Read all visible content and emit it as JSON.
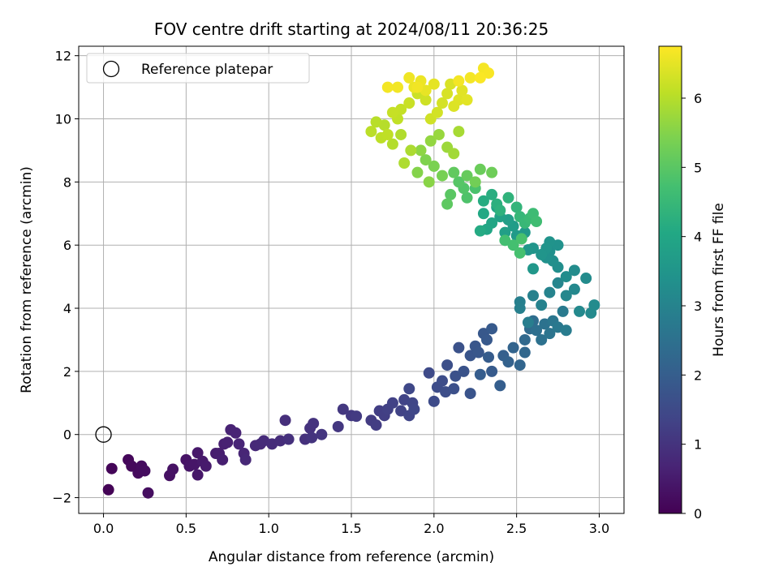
{
  "chart_data": {
    "type": "scatter",
    "title": "FOV centre drift starting at 2024/08/11 20:36:25",
    "xlabel": "Angular distance from reference (arcmin)",
    "ylabel": "Rotation from reference (arcmin)",
    "xlim": [
      -0.15,
      3.15
    ],
    "ylim": [
      -2.5,
      12.3
    ],
    "xticks": [
      0.0,
      0.5,
      1.0,
      1.5,
      2.0,
      2.5,
      3.0
    ],
    "xtick_labels": [
      "0.0",
      "0.5",
      "1.0",
      "1.5",
      "2.0",
      "2.5",
      "3.0"
    ],
    "yticks": [
      -2,
      0,
      2,
      4,
      6,
      8,
      10,
      12
    ],
    "ytick_labels": [
      "−2",
      "0",
      "2",
      "4",
      "6",
      "8",
      "10",
      "12"
    ],
    "grid": true,
    "legend": {
      "position": "top-left",
      "entries": [
        "Reference platepar"
      ]
    },
    "reference_point": {
      "x": 0.0,
      "y": 0.0,
      "label": "Reference platepar"
    },
    "colorbar": {
      "label": "Hours from first FF file",
      "colormap": "viridis",
      "range": [
        0,
        6.75
      ],
      "ticks": [
        0,
        1,
        2,
        3,
        4,
        5,
        6
      ],
      "tick_labels": [
        "0",
        "1",
        "2",
        "3",
        "4",
        "5",
        "6"
      ]
    },
    "series": [
      {
        "points": [
          [
            0.03,
            -1.75,
            0.05
          ],
          [
            0.05,
            -1.08,
            0.08
          ],
          [
            0.15,
            -0.8,
            0.12
          ],
          [
            0.17,
            -1.0,
            0.15
          ],
          [
            0.21,
            -1.22,
            0.18
          ],
          [
            0.23,
            -1.0,
            0.2
          ],
          [
            0.25,
            -1.15,
            0.22
          ],
          [
            0.27,
            -1.85,
            0.25
          ],
          [
            0.4,
            -1.3,
            0.3
          ],
          [
            0.42,
            -1.1,
            0.32
          ],
          [
            0.5,
            -0.8,
            0.35
          ],
          [
            0.52,
            -1.0,
            0.38
          ],
          [
            0.55,
            -0.95,
            0.4
          ],
          [
            0.57,
            -1.28,
            0.42
          ],
          [
            0.57,
            -0.58,
            0.45
          ],
          [
            0.6,
            -0.85,
            0.48
          ],
          [
            0.62,
            -1.0,
            0.5
          ],
          [
            0.68,
            -0.6,
            0.53
          ],
          [
            0.7,
            -0.6,
            0.55
          ],
          [
            0.72,
            -0.8,
            0.57
          ],
          [
            0.73,
            -0.3,
            0.6
          ],
          [
            0.75,
            -0.25,
            0.62
          ],
          [
            0.77,
            0.15,
            0.65
          ],
          [
            0.8,
            0.05,
            0.67
          ],
          [
            0.82,
            -0.3,
            0.7
          ],
          [
            0.85,
            -0.6,
            0.72
          ],
          [
            0.86,
            -0.8,
            0.75
          ],
          [
            0.92,
            -0.35,
            0.78
          ],
          [
            0.95,
            -0.3,
            0.8
          ],
          [
            0.97,
            -0.2,
            0.82
          ],
          [
            1.02,
            -0.3,
            0.85
          ],
          [
            1.07,
            -0.2,
            0.87
          ],
          [
            1.1,
            0.45,
            0.9
          ],
          [
            1.12,
            -0.15,
            0.92
          ],
          [
            1.22,
            -0.15,
            0.95
          ],
          [
            1.25,
            0.2,
            0.97
          ],
          [
            1.27,
            0.35,
            1.0
          ],
          [
            1.26,
            -0.1,
            1.02
          ],
          [
            1.32,
            0.0,
            1.05
          ],
          [
            1.42,
            0.25,
            1.08
          ],
          [
            1.45,
            0.8,
            1.1
          ],
          [
            1.5,
            0.6,
            1.12
          ],
          [
            1.53,
            0.58,
            1.15
          ],
          [
            1.62,
            0.45,
            1.18
          ],
          [
            1.65,
            0.3,
            1.2
          ],
          [
            1.67,
            0.75,
            1.22
          ],
          [
            1.7,
            0.6,
            1.25
          ],
          [
            1.72,
            0.8,
            1.28
          ],
          [
            1.75,
            1.0,
            1.3
          ],
          [
            1.8,
            0.75,
            1.33
          ],
          [
            1.82,
            1.1,
            1.35
          ],
          [
            1.85,
            0.6,
            1.38
          ],
          [
            1.87,
            1.0,
            1.4
          ],
          [
            1.88,
            0.8,
            1.42
          ],
          [
            1.85,
            1.45,
            1.45
          ],
          [
            1.97,
            1.95,
            1.5
          ],
          [
            2.0,
            1.05,
            1.52
          ],
          [
            2.02,
            1.5,
            1.55
          ],
          [
            2.05,
            1.7,
            1.57
          ],
          [
            2.07,
            1.35,
            1.6
          ],
          [
            2.08,
            2.2,
            1.62
          ],
          [
            2.12,
            1.45,
            1.65
          ],
          [
            2.13,
            1.85,
            1.68
          ],
          [
            2.15,
            2.75,
            1.7
          ],
          [
            2.18,
            2.0,
            1.72
          ],
          [
            2.22,
            1.3,
            1.75
          ],
          [
            2.22,
            2.5,
            1.78
          ],
          [
            2.25,
            2.8,
            1.8
          ],
          [
            2.27,
            2.6,
            1.82
          ],
          [
            2.3,
            3.2,
            1.85
          ],
          [
            2.32,
            3.0,
            1.88
          ],
          [
            2.35,
            3.35,
            1.9
          ],
          [
            2.35,
            2.0,
            1.92
          ],
          [
            2.33,
            2.45,
            1.95
          ],
          [
            2.28,
            1.9,
            1.97
          ],
          [
            2.4,
            1.55,
            2.0
          ],
          [
            2.42,
            2.5,
            2.05
          ],
          [
            2.45,
            2.3,
            2.1
          ],
          [
            2.48,
            2.75,
            2.15
          ],
          [
            2.52,
            2.2,
            2.2
          ],
          [
            2.55,
            2.6,
            2.25
          ],
          [
            2.55,
            3.0,
            2.3
          ],
          [
            2.58,
            3.35,
            2.35
          ],
          [
            2.6,
            3.6,
            2.4
          ],
          [
            2.62,
            3.3,
            2.45
          ],
          [
            2.65,
            3.0,
            2.5
          ],
          [
            2.67,
            3.5,
            2.55
          ],
          [
            2.7,
            3.2,
            2.6
          ],
          [
            2.72,
            3.6,
            2.65
          ],
          [
            2.75,
            3.4,
            2.7
          ],
          [
            2.78,
            3.9,
            2.75
          ],
          [
            2.8,
            3.3,
            2.8
          ],
          [
            2.57,
            3.55,
            2.85
          ],
          [
            2.52,
            4.2,
            2.9
          ],
          [
            2.52,
            4.0,
            2.92
          ],
          [
            2.6,
            4.4,
            2.95
          ],
          [
            2.65,
            4.1,
            2.98
          ],
          [
            2.7,
            4.5,
            3.0
          ],
          [
            2.75,
            4.8,
            3.05
          ],
          [
            2.8,
            4.4,
            3.1
          ],
          [
            2.85,
            4.6,
            3.12
          ],
          [
            2.88,
            3.9,
            3.15
          ],
          [
            2.95,
            3.85,
            3.18
          ],
          [
            2.97,
            4.1,
            3.2
          ],
          [
            2.92,
            4.95,
            3.22
          ],
          [
            2.85,
            5.2,
            3.25
          ],
          [
            2.8,
            5.0,
            3.28
          ],
          [
            2.75,
            5.3,
            3.3
          ],
          [
            2.72,
            5.5,
            3.33
          ],
          [
            2.7,
            5.8,
            3.35
          ],
          [
            2.68,
            5.6,
            3.38
          ],
          [
            2.75,
            6.0,
            3.4
          ],
          [
            2.7,
            6.1,
            3.42
          ],
          [
            2.68,
            5.9,
            3.45
          ],
          [
            2.65,
            5.7,
            3.48
          ],
          [
            2.6,
            5.9,
            3.5
          ],
          [
            2.57,
            5.85,
            3.52
          ],
          [
            2.6,
            5.25,
            3.55
          ],
          [
            2.55,
            6.4,
            3.6
          ],
          [
            2.5,
            6.3,
            3.65
          ],
          [
            2.48,
            6.6,
            3.7
          ],
          [
            2.45,
            6.8,
            3.75
          ],
          [
            2.43,
            6.4,
            3.8
          ],
          [
            2.4,
            6.9,
            3.85
          ],
          [
            2.38,
            7.2,
            3.9
          ],
          [
            2.35,
            6.7,
            3.95
          ],
          [
            2.32,
            6.5,
            4.0
          ],
          [
            2.3,
            7.0,
            4.05
          ],
          [
            2.28,
            6.45,
            4.1
          ],
          [
            2.3,
            7.4,
            4.15
          ],
          [
            2.35,
            7.6,
            4.2
          ],
          [
            2.38,
            7.3,
            4.25
          ],
          [
            2.4,
            7.1,
            4.3
          ],
          [
            2.45,
            7.5,
            4.35
          ],
          [
            2.5,
            7.2,
            4.4
          ],
          [
            2.52,
            6.9,
            4.45
          ],
          [
            2.55,
            6.7,
            4.5
          ],
          [
            2.58,
            6.85,
            4.55
          ],
          [
            2.6,
            7.0,
            4.6
          ],
          [
            2.62,
            6.75,
            4.65
          ],
          [
            2.43,
            6.15,
            4.7
          ],
          [
            2.48,
            6.0,
            4.72
          ],
          [
            2.52,
            5.75,
            4.75
          ],
          [
            2.53,
            6.2,
            4.78
          ],
          [
            2.25,
            7.8,
            4.8
          ],
          [
            2.2,
            7.5,
            4.85
          ],
          [
            2.18,
            7.8,
            4.9
          ],
          [
            2.15,
            8.0,
            4.95
          ],
          [
            2.1,
            7.6,
            5.0
          ],
          [
            2.08,
            7.3,
            5.05
          ],
          [
            2.12,
            8.3,
            5.1
          ],
          [
            2.2,
            8.2,
            5.15
          ],
          [
            2.28,
            8.4,
            5.2
          ],
          [
            2.35,
            8.3,
            5.25
          ],
          [
            2.25,
            8.0,
            5.3
          ],
          [
            2.05,
            8.2,
            5.35
          ],
          [
            2.0,
            8.5,
            5.4
          ],
          [
            1.95,
            8.7,
            5.45
          ],
          [
            1.9,
            8.3,
            5.5
          ],
          [
            1.97,
            8.0,
            5.55
          ],
          [
            1.92,
            9.0,
            5.6
          ],
          [
            1.98,
            9.3,
            5.65
          ],
          [
            2.03,
            9.5,
            5.7
          ],
          [
            2.08,
            9.1,
            5.75
          ],
          [
            2.12,
            8.9,
            5.8
          ],
          [
            2.15,
            9.6,
            5.85
          ],
          [
            1.86,
            9.0,
            5.9
          ],
          [
            1.82,
            8.6,
            5.92
          ],
          [
            1.8,
            9.5,
            5.95
          ],
          [
            1.75,
            9.2,
            5.97
          ],
          [
            1.7,
            9.8,
            6.0
          ],
          [
            1.65,
            9.9,
            6.02
          ],
          [
            1.62,
            9.6,
            6.05
          ],
          [
            1.68,
            9.4,
            6.07
          ],
          [
            1.72,
            9.5,
            6.1
          ],
          [
            1.78,
            10.0,
            6.12
          ],
          [
            1.8,
            10.3,
            6.15
          ],
          [
            1.75,
            10.2,
            6.17
          ],
          [
            1.85,
            10.5,
            6.2
          ],
          [
            1.9,
            10.8,
            6.22
          ],
          [
            1.95,
            10.6,
            6.25
          ],
          [
            1.98,
            10.0,
            6.27
          ],
          [
            2.02,
            10.2,
            6.3
          ],
          [
            2.05,
            10.5,
            6.32
          ],
          [
            2.08,
            10.8,
            6.35
          ],
          [
            2.1,
            11.1,
            6.37
          ],
          [
            2.12,
            10.4,
            6.4
          ],
          [
            2.15,
            10.6,
            6.42
          ],
          [
            2.17,
            10.9,
            6.45
          ],
          [
            2.2,
            10.6,
            6.47
          ],
          [
            2.0,
            11.1,
            6.5
          ],
          [
            1.95,
            10.9,
            6.52
          ],
          [
            1.88,
            11.0,
            6.55
          ],
          [
            1.92,
            11.2,
            6.57
          ],
          [
            1.85,
            11.3,
            6.6
          ],
          [
            1.9,
            11.0,
            6.62
          ],
          [
            1.78,
            11.0,
            6.63
          ],
          [
            1.72,
            11.0,
            6.64
          ],
          [
            2.15,
            11.2,
            6.65
          ],
          [
            2.22,
            11.3,
            6.66
          ],
          [
            2.3,
            11.6,
            6.67
          ],
          [
            2.33,
            11.45,
            6.7
          ],
          [
            2.28,
            11.3,
            6.72
          ]
        ]
      }
    ]
  }
}
